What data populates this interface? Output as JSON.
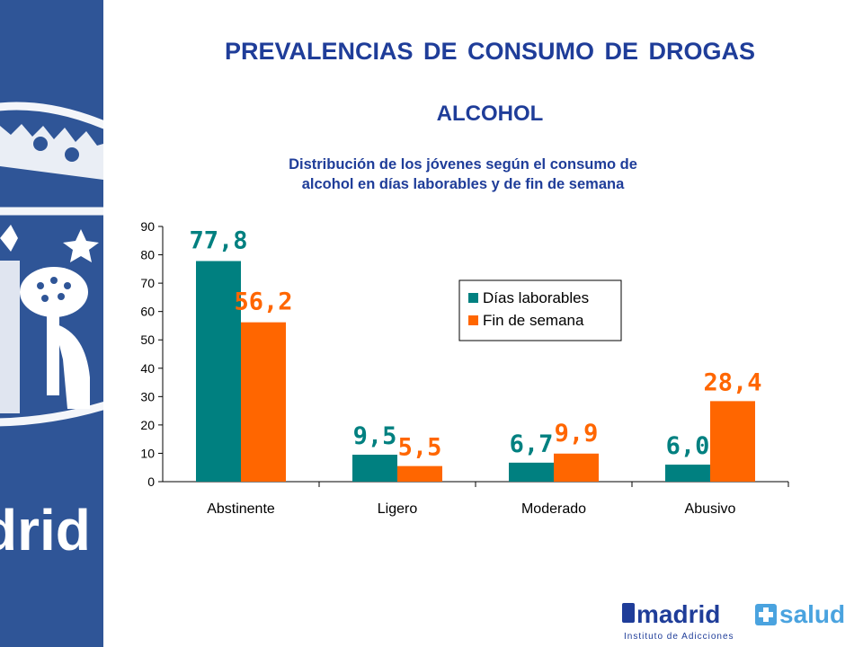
{
  "slide": {
    "title": "PREVALENCIAS DE CONSUMO DE DROGAS",
    "subtitle": "ALCOHOL",
    "caption_line1": "Distribución de los jóvenes según el consumo de",
    "caption_line2": "alcohol en días laborables y de fin de semana"
  },
  "sidebar": {
    "text": "drid",
    "color": "#2f5597"
  },
  "logo": {
    "brand_left": "madrid",
    "brand_right": "salud",
    "tagline": "Instituto de Adicciones",
    "icon": "shield-cross-icon"
  },
  "chart_data": {
    "type": "bar",
    "categories": [
      "Abstinente",
      "Ligero",
      "Moderado",
      "Abusivo"
    ],
    "series": [
      {
        "name": "Días laborables",
        "values": [
          77.8,
          9.5,
          6.7,
          6.0
        ],
        "labels": [
          "77,8",
          "9,5",
          "6,7",
          "6,0"
        ],
        "color": "#008080"
      },
      {
        "name": "Fin de semana",
        "values": [
          56.2,
          5.5,
          9.9,
          28.4
        ],
        "labels": [
          "56,2",
          "5,5",
          "9,9",
          "28,4"
        ],
        "color": "#ff6600"
      }
    ],
    "ylim": [
      0,
      90
    ],
    "yticks": [
      0,
      10,
      20,
      30,
      40,
      50,
      60,
      70,
      80,
      90
    ],
    "grid": false,
    "legend_position": "top-right"
  }
}
